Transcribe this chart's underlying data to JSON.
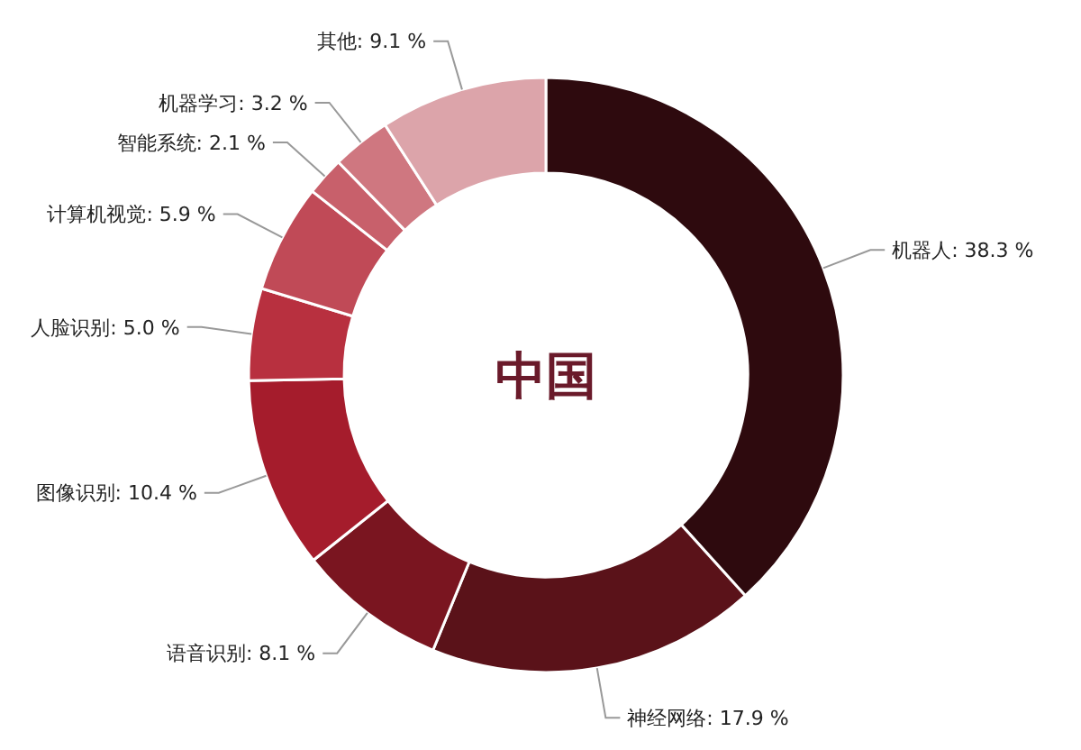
{
  "chart_data": {
    "type": "donut",
    "annotations": [
      "中国"
    ],
    "categories": [
      "机器人",
      "神经网络",
      "语音识别",
      "图像识别",
      "人脸识别",
      "计算机视觉",
      "智能系统",
      "机器学习",
      "其他"
    ],
    "values": [
      38.3,
      17.9,
      8.1,
      10.4,
      5.0,
      5.9,
      2.1,
      3.2,
      9.1
    ],
    "value_labels": [
      ": 38.3 %",
      ": 17.9 %",
      ": 8.1 %",
      ": 10.4 %",
      ": 5.0 %",
      ": 5.9 %",
      ": 2.1 %",
      ": 3.2 %",
      ": 9.1 %"
    ],
    "colors": [
      "#2e0a0e",
      "#5a1219",
      "#7a1520",
      "#a51c2c",
      "#b8303f",
      "#c04a57",
      "#c8606b",
      "#cf7780",
      "#dca4aa"
    ]
  }
}
